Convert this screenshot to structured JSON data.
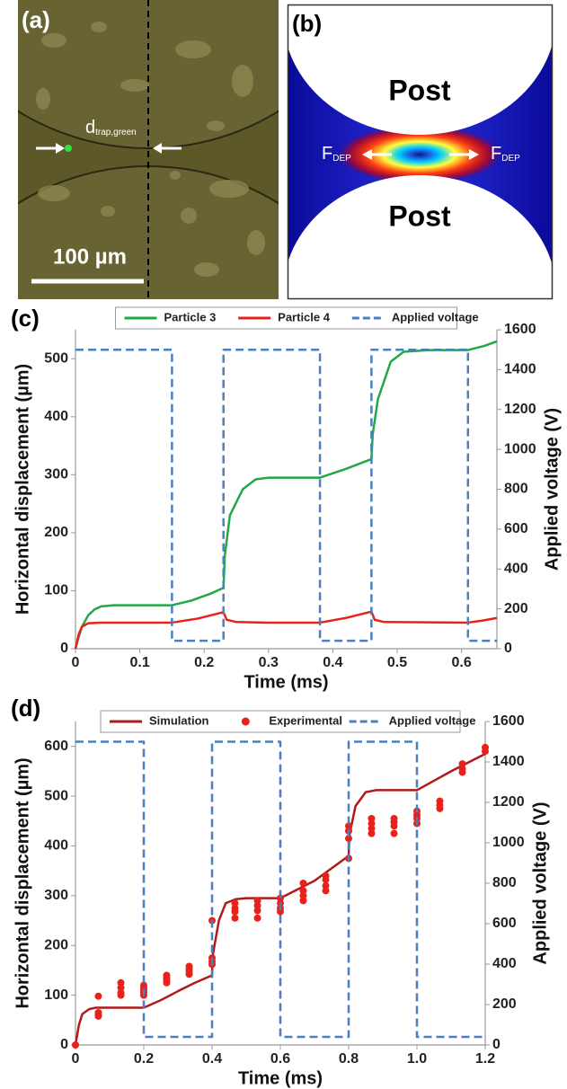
{
  "panel_a": {
    "label": "(a)",
    "gap_label": "d",
    "gap_label_sub": "trap,green",
    "scale_bar": "100 µm"
  },
  "panel_b": {
    "label": "(b)",
    "top_region": "Post",
    "bottom_region": "Post",
    "force_left": "F",
    "force_left_sub": "DEP",
    "force_right": "F",
    "force_right_sub": "DEP"
  },
  "chart_data": [
    {
      "type": "line",
      "label": "(c)",
      "x_label": "Time (ms)",
      "y_label": "Horizontal displacement (µm)",
      "y2_label": "Applied voltage (V)",
      "xlim": [
        0,
        0.655
      ],
      "xticks": [
        0,
        0.1,
        0.2,
        0.3,
        0.4,
        0.5,
        0.6
      ],
      "ylim": [
        0,
        550
      ],
      "yticks": [
        0,
        100,
        200,
        300,
        400,
        500
      ],
      "y2lim": [
        0,
        1600
      ],
      "y2ticks": [
        0,
        200,
        400,
        600,
        800,
        1000,
        1200,
        1400,
        1600
      ],
      "legend": "top",
      "series": [
        {
          "name": "Particle 3",
          "color": "#22a845",
          "style": "line",
          "x": [
            0,
            0.005,
            0.01,
            0.02,
            0.03,
            0.04,
            0.06,
            0.1,
            0.15,
            0.18,
            0.21,
            0.23,
            0.232,
            0.24,
            0.26,
            0.28,
            0.3,
            0.34,
            0.38,
            0.42,
            0.46,
            0.462,
            0.47,
            0.49,
            0.51,
            0.55,
            0.61,
            0.635,
            0.655
          ],
          "values": [
            0,
            20,
            38,
            58,
            68,
            73,
            75,
            75,
            75,
            83,
            95,
            105,
            160,
            230,
            275,
            292,
            295,
            295,
            295,
            310,
            327,
            370,
            430,
            495,
            512,
            515,
            515,
            522,
            530
          ]
        },
        {
          "name": "Particle 4",
          "color": "#e8221b",
          "style": "line",
          "x": [
            0,
            0.005,
            0.01,
            0.02,
            0.04,
            0.15,
            0.19,
            0.23,
            0.235,
            0.25,
            0.3,
            0.38,
            0.42,
            0.46,
            0.465,
            0.48,
            0.61,
            0.635,
            0.655
          ],
          "values": [
            0,
            25,
            38,
            44,
            45,
            45,
            52,
            63,
            50,
            46,
            45,
            45,
            53,
            64,
            50,
            46,
            45,
            49,
            53
          ]
        },
        {
          "name": "Applied voltage",
          "color": "#4a7fc1",
          "style": "dash",
          "axis": "y2",
          "x": [
            0,
            0.15,
            0.15,
            0.23,
            0.23,
            0.38,
            0.38,
            0.46,
            0.46,
            0.61,
            0.61,
            0.655
          ],
          "values": [
            1500,
            1500,
            40,
            40,
            1500,
            1500,
            40,
            40,
            1500,
            1500,
            40,
            40
          ]
        }
      ]
    },
    {
      "type": "line",
      "label": "(d)",
      "x_label": "Time (ms)",
      "y_label": "Horizontal displacement (µm)",
      "y2_label": "Applied voltage (V)",
      "xlim": [
        0,
        1.2
      ],
      "xticks": [
        0,
        0.2,
        0.4,
        0.6,
        0.8,
        {
          "value": 1,
          "label": "1.0"
        },
        1.2
      ],
      "ylim": [
        0,
        650
      ],
      "yticks": [
        0,
        100,
        200,
        300,
        400,
        500,
        600
      ],
      "y2lim": [
        0,
        1600
      ],
      "y2ticks": [
        0,
        200,
        400,
        600,
        800,
        1000,
        1200,
        1400,
        1600
      ],
      "legend": "top",
      "series": [
        {
          "name": "Simulation",
          "color": "#b01a1a",
          "style": "line",
          "x": [
            0,
            0.01,
            0.02,
            0.04,
            0.06,
            0.1,
            0.2,
            0.25,
            0.3,
            0.35,
            0.4,
            0.402,
            0.42,
            0.44,
            0.47,
            0.5,
            0.6,
            0.7,
            0.8,
            0.802,
            0.82,
            0.85,
            0.88,
            1.0,
            1.1,
            1.2
          ],
          "values": [
            0,
            40,
            62,
            72,
            75,
            75,
            75,
            90,
            108,
            125,
            140,
            180,
            250,
            285,
            293,
            295,
            295,
            330,
            380,
            420,
            480,
            508,
            512,
            512,
            550,
            585
          ]
        },
        {
          "name": "Experimental",
          "color": "#e8221b",
          "style": "scatter",
          "x": [
            0,
            0.067,
            0.067,
            0.067,
            0.067,
            0.133,
            0.133,
            0.133,
            0.133,
            0.2,
            0.2,
            0.2,
            0.2,
            0.2,
            0.267,
            0.267,
            0.267,
            0.267,
            0.333,
            0.333,
            0.333,
            0.333,
            0.4,
            0.4,
            0.4,
            0.4,
            0.467,
            0.467,
            0.467,
            0.467,
            0.533,
            0.533,
            0.533,
            0.533,
            0.6,
            0.6,
            0.6,
            0.6,
            0.667,
            0.667,
            0.667,
            0.667,
            0.733,
            0.733,
            0.733,
            0.733,
            0.8,
            0.8,
            0.8,
            0.8,
            0.867,
            0.867,
            0.867,
            0.867,
            0.933,
            0.933,
            0.933,
            0.933,
            1.0,
            1.0,
            1.0,
            1.0,
            1.067,
            1.067,
            1.067,
            1.133,
            1.133,
            1.133,
            1.2,
            1.2
          ],
          "values": [
            0,
            98,
            65,
            60,
            58,
            125,
            115,
            105,
            100,
            120,
            115,
            110,
            105,
            100,
            140,
            135,
            130,
            125,
            158,
            152,
            148,
            142,
            250,
            175,
            168,
            162,
            285,
            275,
            268,
            255,
            290,
            280,
            270,
            255,
            295,
            285,
            275,
            268,
            325,
            310,
            300,
            290,
            340,
            332,
            320,
            310,
            440,
            430,
            415,
            375,
            455,
            445,
            435,
            425,
            455,
            448,
            440,
            425,
            470,
            462,
            455,
            445,
            490,
            482,
            475,
            565,
            555,
            548,
            598,
            590
          ]
        },
        {
          "name": "Applied voltage",
          "color": "#4a7fc1",
          "style": "dash",
          "axis": "y2",
          "x": [
            0,
            0.2,
            0.2,
            0.4,
            0.4,
            0.6,
            0.6,
            0.8,
            0.8,
            1.0,
            1.0,
            1.2
          ],
          "values": [
            1500,
            1500,
            40,
            40,
            1500,
            1500,
            40,
            40,
            1500,
            1500,
            40,
            40
          ]
        }
      ]
    }
  ]
}
